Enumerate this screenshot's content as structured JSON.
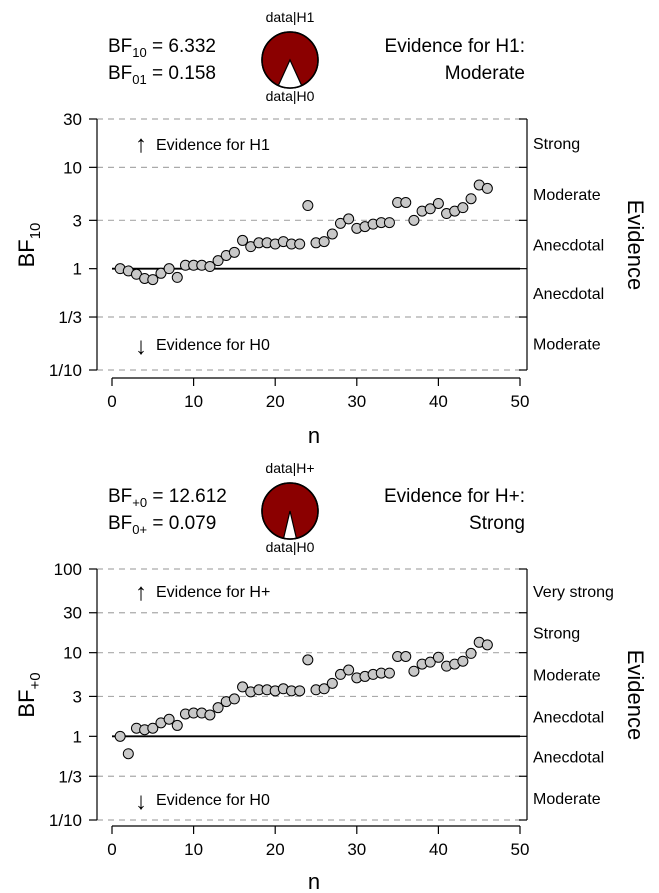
{
  "colors": {
    "pie_h1": "#8b0000",
    "pie_h0": "#ffffff",
    "point_fill": "#c8c8c8",
    "grid": "#aaaaaa"
  },
  "panels": [
    {
      "bf_label": "BF",
      "bf_sub": "10",
      "bf_value": "6.332",
      "bf_inv_label": "BF",
      "bf_inv_sub": "01",
      "bf_inv_value": "0.158",
      "pie_top_label": "data|H1",
      "pie_bottom_label": "data|H0",
      "evidence_line1": "Evidence for H1:",
      "evidence_line2": "Moderate",
      "ylabel": "BF",
      "ylabel_sub": "10",
      "xlabel": "n",
      "right_label": "Evidence",
      "arrow_up_label": "Evidence for H1",
      "arrow_down_label": "Evidence for H0",
      "up_arrow": "↑",
      "down_arrow": "↓",
      "pie_h1_share": 0.8636
    },
    {
      "bf_label": "BF",
      "bf_sub": "+0",
      "bf_value": "12.612",
      "bf_inv_label": "BF",
      "bf_inv_sub": "0+",
      "bf_inv_value": "0.079",
      "pie_top_label": "data|H+",
      "pie_bottom_label": "data|H0",
      "evidence_line1": "Evidence for H+:",
      "evidence_line2": "Strong",
      "ylabel": "BF",
      "ylabel_sub": "+0",
      "xlabel": "n",
      "right_label": "Evidence",
      "arrow_up_label": "Evidence for H+",
      "arrow_down_label": "Evidence for H0",
      "up_arrow": "↑",
      "down_arrow": "↓",
      "pie_h1_share": 0.9265
    }
  ],
  "chart_data": [
    {
      "type": "scatter",
      "scale": "log",
      "xlabel": "n",
      "ylabel": "BF10",
      "xlim": [
        0,
        50
      ],
      "ylim": [
        0.1,
        30
      ],
      "x_ticks": [
        0,
        10,
        20,
        30,
        40,
        50
      ],
      "y_ticks": [
        {
          "value": 0.1,
          "label": "1/10"
        },
        {
          "value": 0.3333,
          "label": "1/3"
        },
        {
          "value": 1,
          "label": "1"
        },
        {
          "value": 3,
          "label": "3"
        },
        {
          "value": 10,
          "label": "10"
        },
        {
          "value": 30,
          "label": "30"
        }
      ],
      "grid_dashed_at": [
        0.1,
        0.3333,
        3,
        10,
        30
      ],
      "reference_line": 1,
      "category_labels": [
        {
          "label": "Strong",
          "lo": 10,
          "hi": 30
        },
        {
          "label": "Moderate",
          "lo": 3,
          "hi": 10
        },
        {
          "label": "Anecdotal",
          "lo": 1,
          "hi": 3
        },
        {
          "label": "Anecdotal",
          "lo": 0.3333,
          "hi": 1
        },
        {
          "label": "Moderate",
          "lo": 0.1,
          "hi": 0.3333
        }
      ],
      "x": [
        1,
        2,
        3,
        4,
        5,
        6,
        7,
        8,
        9,
        10,
        11,
        12,
        13,
        14,
        15,
        16,
        17,
        18,
        19,
        20,
        21,
        22,
        23,
        24,
        25,
        26,
        27,
        28,
        29,
        30,
        31,
        32,
        33,
        34,
        35,
        36,
        37,
        38,
        39,
        40,
        41,
        42,
        43,
        44,
        45,
        46
      ],
      "y": [
        1.0,
        0.95,
        0.88,
        0.8,
        0.78,
        0.9,
        1.0,
        0.82,
        1.08,
        1.08,
        1.08,
        1.05,
        1.2,
        1.35,
        1.45,
        1.9,
        1.65,
        1.8,
        1.8,
        1.75,
        1.85,
        1.75,
        1.75,
        4.2,
        1.8,
        1.85,
        2.2,
        2.8,
        3.1,
        2.5,
        2.6,
        2.75,
        2.85,
        2.85,
        4.5,
        4.5,
        3.0,
        3.7,
        3.9,
        4.4,
        3.5,
        3.7,
        4.0,
        4.9,
        6.7,
        6.2
      ]
    },
    {
      "type": "scatter",
      "scale": "log",
      "xlabel": "n",
      "ylabel": "BF+0",
      "xlim": [
        0,
        50
      ],
      "ylim": [
        0.1,
        100
      ],
      "x_ticks": [
        0,
        10,
        20,
        30,
        40,
        50
      ],
      "y_ticks": [
        {
          "value": 0.1,
          "label": "1/10"
        },
        {
          "value": 0.3333,
          "label": "1/3"
        },
        {
          "value": 1,
          "label": "1"
        },
        {
          "value": 3,
          "label": "3"
        },
        {
          "value": 10,
          "label": "10"
        },
        {
          "value": 30,
          "label": "30"
        },
        {
          "value": 100,
          "label": "100"
        }
      ],
      "grid_dashed_at": [
        0.1,
        0.3333,
        3,
        10,
        30,
        100
      ],
      "reference_line": 1,
      "category_labels": [
        {
          "label": "Very strong",
          "lo": 30,
          "hi": 100
        },
        {
          "label": "Strong",
          "lo": 10,
          "hi": 30
        },
        {
          "label": "Moderate",
          "lo": 3,
          "hi": 10
        },
        {
          "label": "Anecdotal",
          "lo": 1,
          "hi": 3
        },
        {
          "label": "Anecdotal",
          "lo": 0.3333,
          "hi": 1
        },
        {
          "label": "Moderate",
          "lo": 0.1,
          "hi": 0.3333
        }
      ],
      "x": [
        1,
        2,
        3,
        4,
        5,
        6,
        7,
        8,
        9,
        10,
        11,
        12,
        13,
        14,
        15,
        16,
        17,
        18,
        19,
        20,
        21,
        22,
        23,
        24,
        25,
        26,
        27,
        28,
        29,
        30,
        31,
        32,
        33,
        34,
        35,
        36,
        37,
        38,
        39,
        40,
        41,
        42,
        43,
        44,
        45,
        46
      ],
      "y": [
        1.0,
        0.62,
        1.25,
        1.2,
        1.25,
        1.45,
        1.6,
        1.35,
        1.85,
        1.9,
        1.9,
        1.8,
        2.2,
        2.6,
        2.8,
        3.9,
        3.4,
        3.6,
        3.6,
        3.5,
        3.7,
        3.5,
        3.5,
        8.2,
        3.6,
        3.7,
        4.3,
        5.5,
        6.2,
        5.0,
        5.2,
        5.5,
        5.7,
        5.7,
        9.0,
        9.0,
        6.0,
        7.3,
        7.7,
        8.8,
        6.9,
        7.3,
        7.9,
        9.8,
        13.3,
        12.4
      ]
    }
  ]
}
